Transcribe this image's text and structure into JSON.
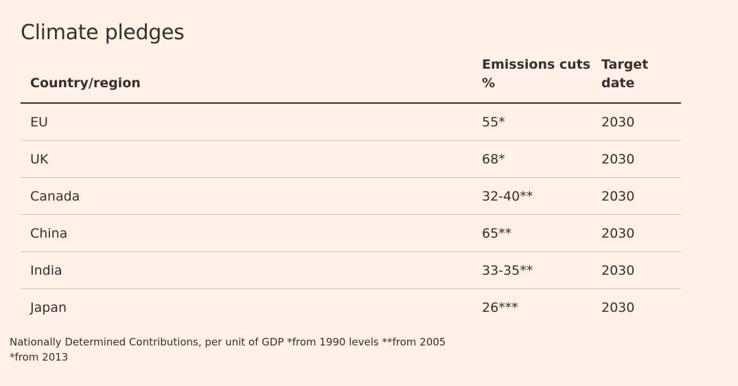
{
  "title": "Climate pledges",
  "columns": {
    "country": "Country/region",
    "cuts_line1": "Emissions cuts",
    "cuts_line2": "%",
    "date_line1": "Target",
    "date_line2": "date"
  },
  "rows": [
    {
      "country": "EU",
      "cuts": "55*",
      "date": "2030"
    },
    {
      "country": "UK",
      "cuts": "68*",
      "date": "2030"
    },
    {
      "country": "Canada",
      "cuts": "32-40**",
      "date": "2030"
    },
    {
      "country": "China",
      "cuts": "65**",
      "date": "2030"
    },
    {
      "country": "India",
      "cuts": "33-35**",
      "date": "2030"
    },
    {
      "country": "Japan",
      "cuts": "26***",
      "date": "2030"
    }
  ],
  "footnote": "Nationally Determined Contributions, per unit of GDP *from 1990 levels **from 2005 *from 2013",
  "colors": {
    "background": "#fff1e5",
    "text": "#33302e",
    "rule": "#ccc1b7"
  }
}
